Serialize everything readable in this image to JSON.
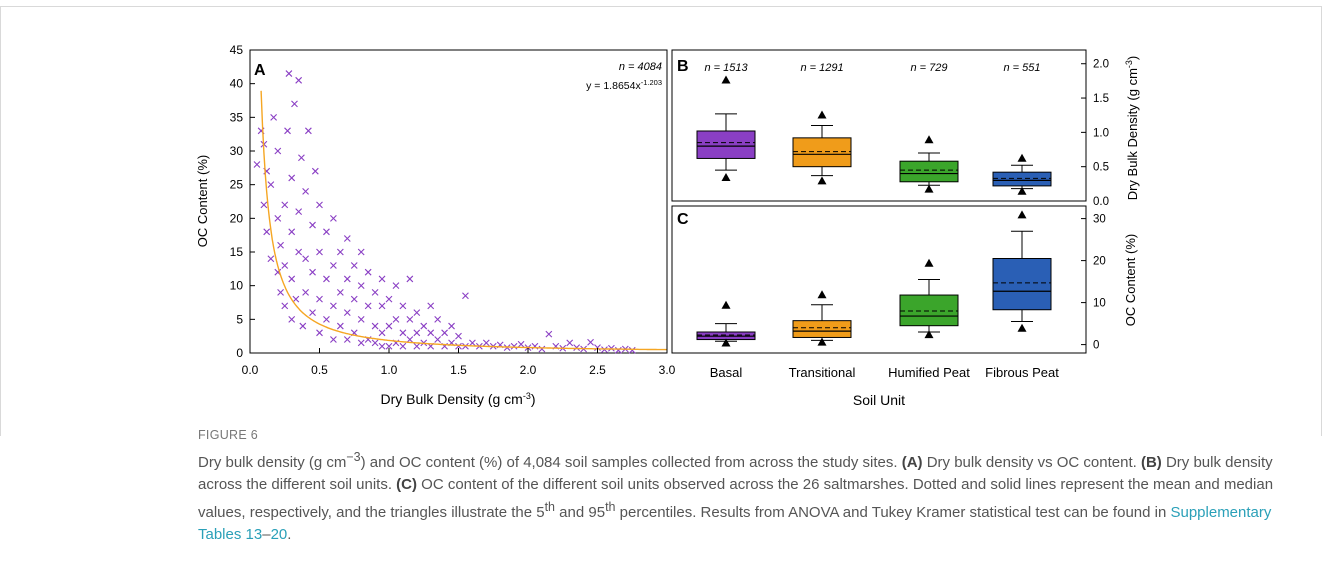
{
  "figure_label": "FIGURE 6",
  "caption": {
    "p1": "Dry bulk density (g cm",
    "p1_sup": "−3",
    "p2": ") and OC content (%) of 4,084 soil samples collected from across the study sites. ",
    "a_tag": "(A)",
    "a_text": " Dry bulk density vs OC content. ",
    "b_tag": "(B)",
    "b_text": " Dry bulk density across the different soil units. ",
    "c_tag": "(C)",
    "c_text": " OC content of the different soil units observed across the 26 saltmarshes. Dotted and solid lines represent the mean and median values, respectively, and the triangles illustrate the 5",
    "sup_th1": "th",
    "and95": " and 95",
    "sup_th2": "th",
    "after": " percentiles. Results from ANOVA and Tukey Kramer statistical test can be found in ",
    "link1": "Supplementary Tables 13",
    "dash": "–",
    "link2": "20",
    "end": "."
  },
  "chart_data": [
    {
      "panel": "A",
      "type": "scatter",
      "xlabel": "Dry Bulk Density (g cm",
      "xlabel_sup": "-3",
      "xlabel_end": ")",
      "ylabel": "OC Content (%)",
      "xlim": [
        0.0,
        3.0
      ],
      "ylim": [
        0,
        45
      ],
      "xticks": [
        "0.0",
        "0.5",
        "1.0",
        "1.5",
        "2.0",
        "2.5",
        "3.0"
      ],
      "yticks": [
        "0",
        "5",
        "10",
        "15",
        "20",
        "25",
        "30",
        "35",
        "40",
        "45"
      ],
      "n_label": "n = 4084",
      "equation": "y = 1.8654x",
      "equation_exp": "-1.203",
      "fit": {
        "a": 1.8654,
        "b": -1.203,
        "color": "#f5a623"
      },
      "marker_color": "#8a3fc4",
      "points": [
        [
          0.05,
          28
        ],
        [
          0.08,
          33
        ],
        [
          0.1,
          22
        ],
        [
          0.1,
          31
        ],
        [
          0.12,
          18
        ],
        [
          0.12,
          27
        ],
        [
          0.15,
          14
        ],
        [
          0.15,
          25
        ],
        [
          0.17,
          35
        ],
        [
          0.2,
          12
        ],
        [
          0.2,
          20
        ],
        [
          0.2,
          30
        ],
        [
          0.22,
          9
        ],
        [
          0.22,
          16
        ],
        [
          0.25,
          7
        ],
        [
          0.25,
          13
        ],
        [
          0.25,
          22
        ],
        [
          0.27,
          33
        ],
        [
          0.28,
          41.5
        ],
        [
          0.3,
          5
        ],
        [
          0.3,
          11
        ],
        [
          0.3,
          18
        ],
        [
          0.3,
          26
        ],
        [
          0.32,
          37
        ],
        [
          0.33,
          8
        ],
        [
          0.35,
          15
        ],
        [
          0.35,
          21
        ],
        [
          0.35,
          40.5
        ],
        [
          0.37,
          29
        ],
        [
          0.38,
          4
        ],
        [
          0.4,
          9
        ],
        [
          0.4,
          14
        ],
        [
          0.4,
          24
        ],
        [
          0.42,
          33
        ],
        [
          0.45,
          6
        ],
        [
          0.45,
          12
        ],
        [
          0.45,
          19
        ],
        [
          0.47,
          27
        ],
        [
          0.5,
          3
        ],
        [
          0.5,
          8
        ],
        [
          0.5,
          15
        ],
        [
          0.5,
          22
        ],
        [
          0.55,
          5
        ],
        [
          0.55,
          11
        ],
        [
          0.55,
          18
        ],
        [
          0.6,
          2
        ],
        [
          0.6,
          7
        ],
        [
          0.6,
          13
        ],
        [
          0.6,
          20
        ],
        [
          0.65,
          4
        ],
        [
          0.65,
          9
        ],
        [
          0.65,
          15
        ],
        [
          0.7,
          2
        ],
        [
          0.7,
          6
        ],
        [
          0.7,
          11
        ],
        [
          0.7,
          17
        ],
        [
          0.75,
          3
        ],
        [
          0.75,
          8
        ],
        [
          0.75,
          13
        ],
        [
          0.8,
          1.5
        ],
        [
          0.8,
          5
        ],
        [
          0.8,
          10
        ],
        [
          0.8,
          15
        ],
        [
          0.85,
          2
        ],
        [
          0.85,
          7
        ],
        [
          0.85,
          12
        ],
        [
          0.9,
          1.5
        ],
        [
          0.9,
          4
        ],
        [
          0.9,
          9
        ],
        [
          0.95,
          1
        ],
        [
          0.95,
          3
        ],
        [
          0.95,
          7
        ],
        [
          0.95,
          11
        ],
        [
          1.0,
          1
        ],
        [
          1.0,
          4
        ],
        [
          1.0,
          8
        ],
        [
          1.05,
          1.5
        ],
        [
          1.05,
          5
        ],
        [
          1.05,
          10
        ],
        [
          1.1,
          1
        ],
        [
          1.1,
          3
        ],
        [
          1.1,
          7
        ],
        [
          1.15,
          2
        ],
        [
          1.15,
          5
        ],
        [
          1.15,
          11
        ],
        [
          1.2,
          1
        ],
        [
          1.2,
          3
        ],
        [
          1.2,
          6
        ],
        [
          1.25,
          1.5
        ],
        [
          1.25,
          4
        ],
        [
          1.3,
          1
        ],
        [
          1.3,
          3
        ],
        [
          1.3,
          7
        ],
        [
          1.35,
          2
        ],
        [
          1.35,
          5
        ],
        [
          1.4,
          1
        ],
        [
          1.4,
          3
        ],
        [
          1.45,
          1.5
        ],
        [
          1.45,
          4
        ],
        [
          1.5,
          1
        ],
        [
          1.5,
          2.5
        ],
        [
          1.55,
          1
        ],
        [
          1.55,
          8.5
        ],
        [
          1.6,
          1.5
        ],
        [
          1.65,
          1
        ],
        [
          1.7,
          1.5
        ],
        [
          1.75,
          1
        ],
        [
          1.8,
          1.2
        ],
        [
          1.85,
          0.8
        ],
        [
          1.9,
          1
        ],
        [
          1.95,
          1.3
        ],
        [
          2.0,
          0.8
        ],
        [
          2.05,
          1
        ],
        [
          2.1,
          0.6
        ],
        [
          2.15,
          2.8
        ],
        [
          2.2,
          1
        ],
        [
          2.25,
          0.7
        ],
        [
          2.3,
          1.5
        ],
        [
          2.35,
          0.8
        ],
        [
          2.4,
          0.6
        ],
        [
          2.45,
          1.6
        ],
        [
          2.5,
          0.8
        ],
        [
          2.55,
          0.5
        ],
        [
          2.6,
          0.7
        ],
        [
          2.65,
          0.4
        ],
        [
          2.7,
          0.6
        ],
        [
          2.75,
          0.4
        ]
      ]
    },
    {
      "panel": "B",
      "type": "box",
      "ylabel": "Dry Bulk Density (g cm",
      "ylabel_sup": "-3",
      "ylabel_end": ")",
      "ylim": [
        0,
        2.2
      ],
      "yticks": [
        "0.0",
        "0.5",
        "1.0",
        "1.5",
        "2.0"
      ],
      "categories": [
        "Basal",
        "Transitional",
        "Humified Peat",
        "Fibrous Peat"
      ],
      "n_labels": [
        "n = 1513",
        "n = 1291",
        "n = 729",
        "n = 551"
      ],
      "colors": [
        "#8a3fc4",
        "#f09c1a",
        "#3ba52b",
        "#2a5fb5"
      ],
      "boxes": [
        {
          "p5": 0.35,
          "p10": 0.45,
          "q1": 0.62,
          "median": 0.8,
          "mean": 0.85,
          "q3": 1.02,
          "p90": 1.27,
          "p95": 1.77
        },
        {
          "p5": 0.3,
          "p10": 0.37,
          "q1": 0.5,
          "median": 0.68,
          "mean": 0.72,
          "q3": 0.92,
          "p90": 1.1,
          "p95": 1.26
        },
        {
          "p5": 0.18,
          "p10": 0.23,
          "q1": 0.28,
          "median": 0.4,
          "mean": 0.45,
          "q3": 0.58,
          "p90": 0.7,
          "p95": 0.9
        },
        {
          "p5": 0.15,
          "p10": 0.18,
          "q1": 0.22,
          "median": 0.3,
          "mean": 0.33,
          "q3": 0.42,
          "p90": 0.52,
          "p95": 0.63
        }
      ]
    },
    {
      "panel": "C",
      "type": "box",
      "ylabel": "OC Content (%)",
      "xlabel": "Soil Unit",
      "ylim": [
        -2,
        33
      ],
      "yticks": [
        "0",
        "10",
        "20",
        "30"
      ],
      "categories": [
        "Basal",
        "Transitional",
        "Humified Peat",
        "Fibrous Peat"
      ],
      "colors": [
        "#8a3fc4",
        "#f09c1a",
        "#3ba52b",
        "#2a5fb5"
      ],
      "boxes": [
        {
          "p5": 0.5,
          "p10": 0.8,
          "q1": 1.2,
          "median": 2.0,
          "mean": 2.3,
          "q3": 3.0,
          "p90": 5.0,
          "p95": 9.5
        },
        {
          "p5": 0.7,
          "p10": 1.0,
          "q1": 1.7,
          "median": 3.2,
          "mean": 4.0,
          "q3": 5.7,
          "p90": 9.5,
          "p95": 12.0
        },
        {
          "p5": 2.5,
          "p10": 3.0,
          "q1": 4.5,
          "median": 6.8,
          "mean": 8.0,
          "q3": 11.8,
          "p90": 15.5,
          "p95": 19.5
        },
        {
          "p5": 4.0,
          "p10": 5.5,
          "q1": 8.3,
          "median": 12.7,
          "mean": 14.7,
          "q3": 20.5,
          "p90": 27.0,
          "p95": 31.0
        }
      ]
    }
  ]
}
